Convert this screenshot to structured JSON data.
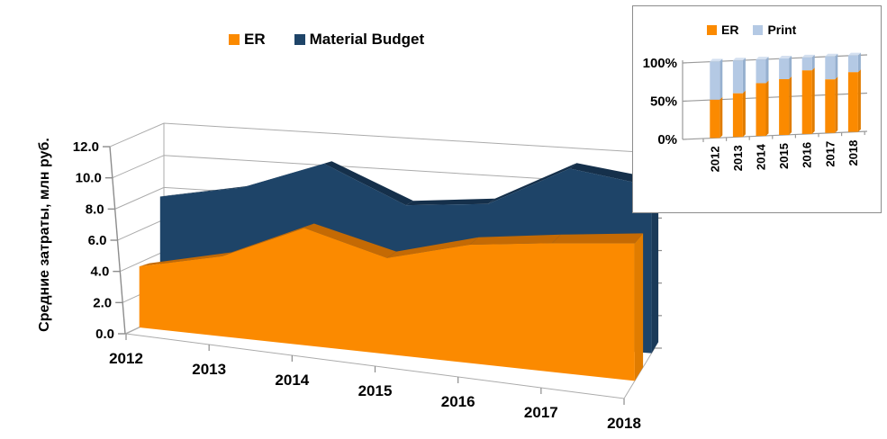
{
  "main_chart": {
    "y_axis_title": "Средние затраты, млн руб.",
    "legend": {
      "er": "ER",
      "mb": "Material Budget"
    }
  },
  "inset_chart": {
    "legend": {
      "er": "ER",
      "print": "Print"
    }
  },
  "colors": {
    "er_front": "#FB8A00",
    "er_top": "#C46A04",
    "er_side": "#E07C00",
    "mb_front": "#1E4468",
    "mb_top": "#15304B",
    "mb_side": "#1A3A59",
    "print_front": "#B4C9E4",
    "print_cap": "#D4E0F0",
    "print_side": "#96B0CF",
    "grid": "#ABABAB",
    "axis": "#8C8C8C",
    "text": "#000000"
  },
  "chart_data": [
    {
      "type": "area",
      "projection": "3d",
      "categories": [
        "2012",
        "2013",
        "2014",
        "2015",
        "2016",
        "2017",
        "2018"
      ],
      "series": [
        {
          "name": "ER",
          "color": "#FB8A00",
          "values": [
            4.0,
            5.0,
            7.0,
            5.5,
            6.5,
            6.8,
            7.0
          ]
        },
        {
          "name": "Material Budget",
          "color": "#1E4468",
          "values": [
            8.4,
            9.0,
            10.5,
            7.9,
            8.0,
            10.0,
            9.0
          ]
        }
      ],
      "ylabel": "Средние затраты, млн руб.",
      "ylim": [
        0,
        12
      ],
      "ytick_step": 2,
      "ytick_labels": [
        "0.0",
        "2.0",
        "4.0",
        "6.0",
        "8.0",
        "10.0",
        "12.0"
      ],
      "legend_position": "top",
      "grid": true
    },
    {
      "type": "bar",
      "stacked": "percent",
      "categories": [
        "2012",
        "2013",
        "2014",
        "2015",
        "2016",
        "2017",
        "2018"
      ],
      "series": [
        {
          "name": "ER",
          "color": "#FB8A00",
          "values": [
            50,
            57,
            69,
            73,
            83,
            70,
            78
          ]
        },
        {
          "name": "Print",
          "color": "#B4C9E4",
          "values": [
            50,
            43,
            31,
            27,
            17,
            30,
            22
          ]
        }
      ],
      "ylim": [
        0,
        100
      ],
      "ytick_labels": [
        "0%",
        "50%",
        "100%"
      ],
      "legend_position": "top",
      "grid": true
    }
  ]
}
